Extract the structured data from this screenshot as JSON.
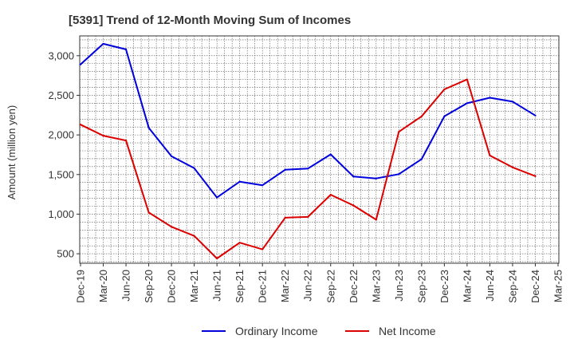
{
  "chart_data": {
    "type": "line",
    "title": "[5391]  Trend of 12-Month Moving Sum of Incomes",
    "xlabel": "",
    "ylabel": "Amount (million yen)",
    "ylim": [
      380,
      3250
    ],
    "yticks": [
      500,
      1000,
      1500,
      2000,
      2500,
      3000
    ],
    "ytick_labels": [
      "500",
      "1,000",
      "1,500",
      "2,000",
      "2,500",
      "3,000"
    ],
    "grid": true,
    "legend_position": "bottom-center",
    "categories": [
      "Dec-19",
      "Mar-20",
      "Jun-20",
      "Sep-20",
      "Dec-20",
      "Mar-21",
      "Jun-21",
      "Sep-21",
      "Dec-21",
      "Mar-22",
      "Jun-22",
      "Sep-22",
      "Dec-22",
      "Mar-23",
      "Jun-23",
      "Sep-23",
      "Dec-23",
      "Mar-24",
      "Jun-24",
      "Sep-24",
      "Dec-24",
      "Mar-25"
    ],
    "series": [
      {
        "name": "Ordinary Income",
        "color": "#0000dd",
        "values": [
          2890,
          3150,
          3080,
          2090,
          1730,
          1580,
          1210,
          1410,
          1365,
          1560,
          1575,
          1755,
          1475,
          1450,
          1505,
          1695,
          2235,
          2400,
          2470,
          2420,
          2245,
          null
        ]
      },
      {
        "name": "Net Income",
        "color": "#dd0000",
        "values": [
          2130,
          1990,
          1930,
          1020,
          840,
          725,
          440,
          640,
          555,
          955,
          965,
          1245,
          1110,
          930,
          2040,
          2235,
          2575,
          2700,
          1740,
          1590,
          1480,
          null
        ]
      }
    ]
  }
}
